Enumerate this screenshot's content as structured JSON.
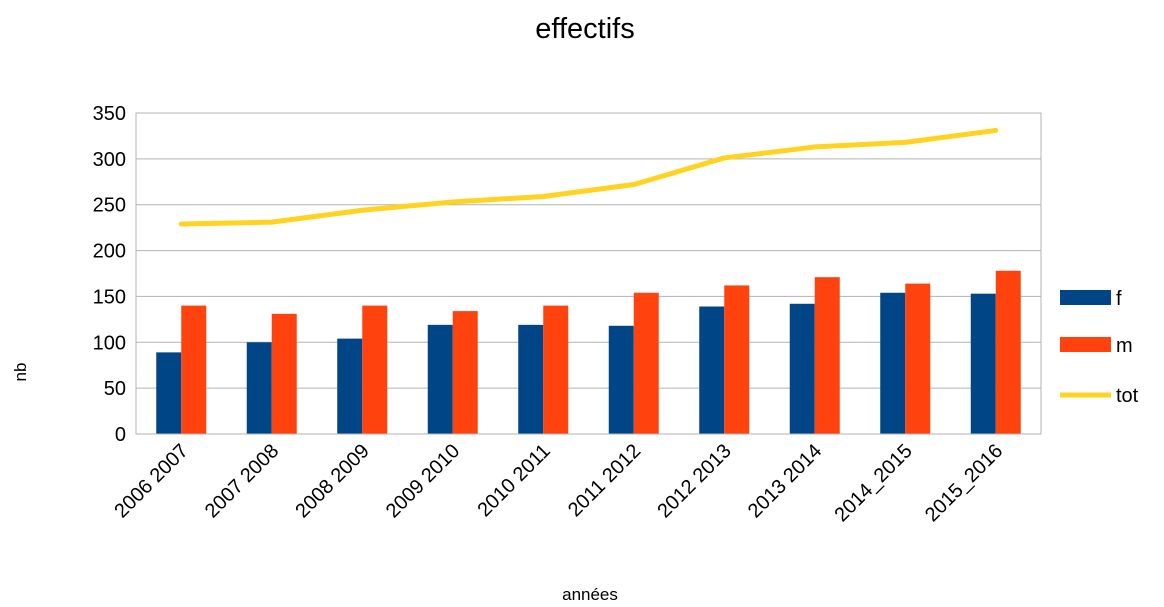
{
  "chart_data": {
    "type": "bar",
    "title": "effectifs",
    "xlabel": "années",
    "ylabel": "nb",
    "ylim": [
      0,
      350
    ],
    "yticks": [
      0,
      50,
      100,
      150,
      200,
      250,
      300,
      350
    ],
    "grid": true,
    "legend_position": "right",
    "categories": [
      "2006 2007",
      "2007 2008",
      "2008 2009",
      "2009 2010",
      "2010 2011",
      "2011 2012",
      "2012 2013",
      "2013 2014",
      "2014_2015",
      "2015_2016"
    ],
    "series": [
      {
        "name": "f",
        "kind": "bar",
        "color": "#004586",
        "values": [
          89,
          100,
          104,
          119,
          119,
          118,
          139,
          142,
          154,
          153
        ]
      },
      {
        "name": "m",
        "kind": "bar",
        "color": "#ff420e",
        "values": [
          140,
          131,
          140,
          134,
          140,
          154,
          162,
          171,
          164,
          178
        ]
      },
      {
        "name": "tot",
        "kind": "line",
        "color": "#ffd320",
        "values": [
          229,
          231,
          244,
          253,
          259,
          272,
          301,
          313,
          318,
          331
        ]
      }
    ]
  }
}
